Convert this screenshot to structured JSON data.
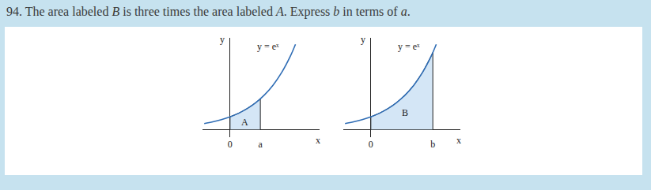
{
  "problem": {
    "segments": [
      {
        "text": "94. The area labeled "
      },
      {
        "text": "B",
        "italic": true
      },
      {
        "text": " is three times the area labeled "
      },
      {
        "text": "A",
        "italic": true
      },
      {
        "text": ". Express "
      },
      {
        "text": "b",
        "italic": true
      },
      {
        "text": " in terms of "
      },
      {
        "text": "a",
        "italic": true
      },
      {
        "text": "."
      }
    ]
  },
  "chart_data": [
    {
      "type": "line",
      "xlabel": "x",
      "ylabel": "y",
      "x": [
        -0.75,
        -0.5,
        -0.25,
        0,
        0.25,
        0.5,
        0.75,
        1,
        1.25,
        1.5,
        1.75,
        1.9
      ],
      "values": [
        0.47,
        0.61,
        0.78,
        1.0,
        1.28,
        1.65,
        2.12,
        2.72,
        3.49,
        4.48,
        5.75,
        6.69
      ],
      "color": "#2f6db5",
      "xlim": [
        -0.8,
        2.6
      ],
      "ylim": [
        -0.6,
        7.2
      ],
      "xticks": [
        0,
        {
          "value": 0.88,
          "label": "a"
        }
      ],
      "yticks": [],
      "tick_labels": "x",
      "grid": false,
      "region": {
        "x": [
          0,
          0,
          0.25,
          0.5,
          0.75,
          0.88,
          0.88
        ],
        "values": [
          0,
          1.0,
          1.28,
          1.65,
          2.12,
          2.41,
          0
        ],
        "color": "#d4e6f6"
      },
      "annotations": [
        {
          "text": "y = eˣ",
          "x": 1.1,
          "y": 6.5
        },
        {
          "text": "A",
          "x": 0.42,
          "y": 0.55
        }
      ]
    },
    {
      "type": "line",
      "xlabel": "x",
      "ylabel": "y",
      "x": [
        -0.75,
        -0.5,
        -0.25,
        0,
        0.25,
        0.5,
        0.75,
        1,
        1.25,
        1.5,
        1.75,
        1.9
      ],
      "values": [
        0.47,
        0.61,
        0.78,
        1.0,
        1.28,
        1.65,
        2.12,
        2.72,
        3.49,
        4.48,
        5.75,
        6.69
      ],
      "color": "#2f6db5",
      "xlim": [
        -0.8,
        2.6
      ],
      "ylim": [
        -0.6,
        7.2
      ],
      "xticks": [
        0,
        {
          "value": 1.8,
          "label": "b"
        }
      ],
      "yticks": [],
      "tick_labels": "x",
      "grid": false,
      "region": {
        "x": [
          0,
          0,
          0.25,
          0.5,
          0.75,
          1,
          1.25,
          1.5,
          1.75,
          1.8,
          1.8
        ],
        "values": [
          0,
          1.0,
          1.28,
          1.65,
          2.12,
          2.72,
          3.49,
          4.48,
          5.75,
          6.05,
          0
        ],
        "color": "#d4e6f6"
      },
      "annotations": [
        {
          "text": "y = eˣ",
          "x": 1.1,
          "y": 6.5
        },
        {
          "text": "B",
          "x": 1.0,
          "y": 1.3
        }
      ]
    }
  ]
}
